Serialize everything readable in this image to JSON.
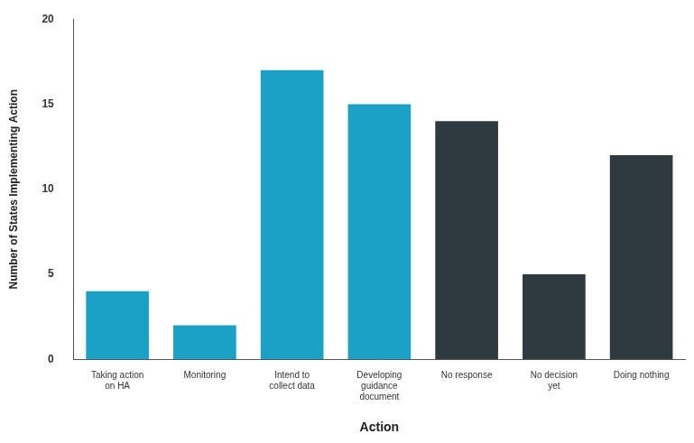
{
  "chart_data": {
    "type": "bar",
    "x_label": "Action",
    "y_label": "Number of States Implementing Action",
    "categories": [
      "Taking action on HA",
      "Monitoring",
      "Intend to collect data",
      "Developing guidance document",
      "No response",
      "No decision yet",
      "Doing nothing"
    ],
    "values": [
      4,
      2,
      17,
      15,
      14,
      5,
      12
    ],
    "colors": [
      "#1ba1c5",
      "#1ba1c5",
      "#1ba1c5",
      "#1ba1c5",
      "#2f3a40",
      "#2f3a40",
      "#2f3a40"
    ],
    "ylim": [
      0,
      20
    ],
    "yticks": [
      0,
      5,
      10,
      15,
      20
    ],
    "grid": false
  }
}
